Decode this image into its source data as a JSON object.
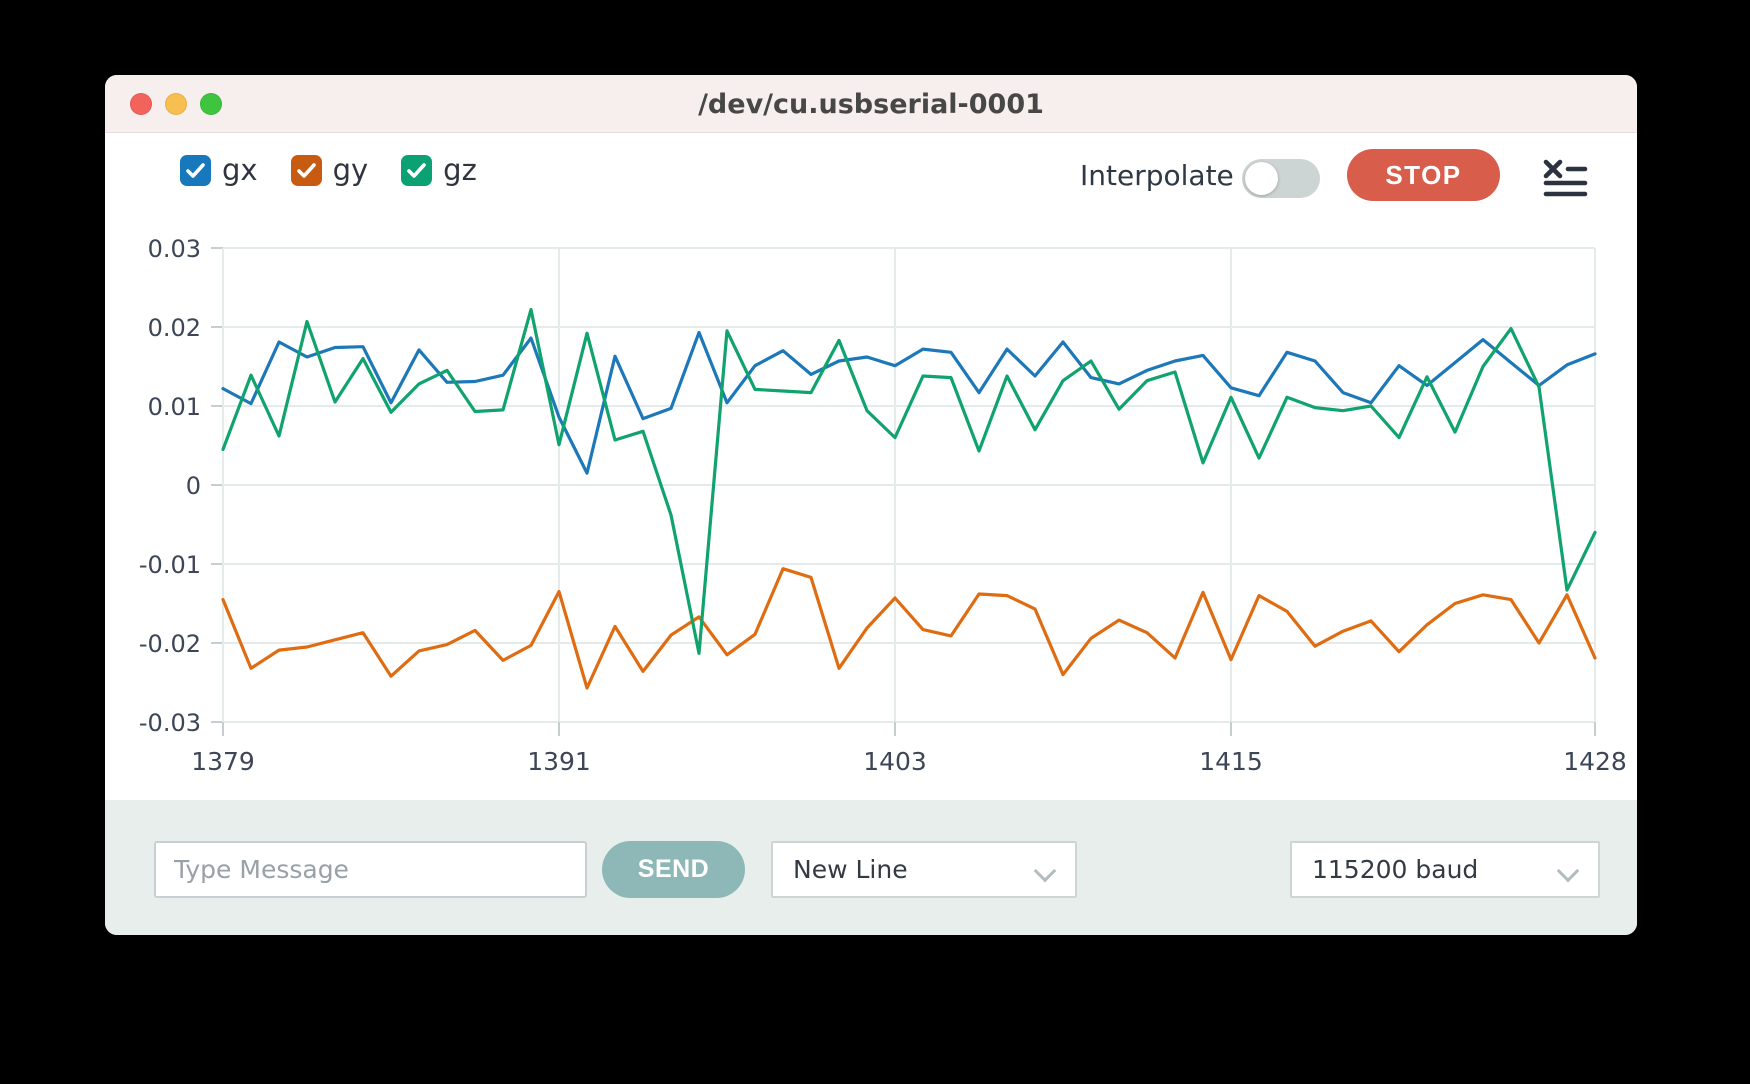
{
  "window": {
    "title": "/dev/cu.usbserial-0001"
  },
  "toolbar": {
    "legend": [
      {
        "label": "gx",
        "color": "#1878bc",
        "checked": true
      },
      {
        "label": "gy",
        "color": "#c75b12",
        "checked": true
      },
      {
        "label": "gz",
        "color": "#0ba173",
        "checked": true
      }
    ],
    "interpolate_label": "Interpolate",
    "interpolate_on": false,
    "stop_label": "STOP"
  },
  "chart_data": {
    "type": "line",
    "title": "",
    "xlabel": "",
    "ylabel": "",
    "grid": true,
    "legend_position": "top-left",
    "ylim": [
      -0.03,
      0.03
    ],
    "yticks": [
      {
        "value": 0.03,
        "label": "0.03"
      },
      {
        "value": 0.02,
        "label": "0.02"
      },
      {
        "value": 0.01,
        "label": "0.01"
      },
      {
        "value": 0,
        "label": "0"
      },
      {
        "value": -0.01,
        "label": "-0.01"
      },
      {
        "value": -0.02,
        "label": "-0.02"
      },
      {
        "value": -0.03,
        "label": "-0.03"
      }
    ],
    "xticks": [
      {
        "index": 0,
        "label": "1379"
      },
      {
        "index": 12,
        "label": "1391"
      },
      {
        "index": 24,
        "label": "1403"
      },
      {
        "index": 36,
        "label": "1415"
      },
      {
        "index": 49,
        "label": "1428"
      }
    ],
    "x": [
      1379,
      1380,
      1381,
      1382,
      1383,
      1384,
      1385,
      1386,
      1387,
      1388,
      1389,
      1390,
      1391,
      1392,
      1393,
      1394,
      1395,
      1396,
      1397,
      1398,
      1399,
      1400,
      1401,
      1402,
      1403,
      1404,
      1405,
      1406,
      1407,
      1408,
      1409,
      1410,
      1411,
      1412,
      1413,
      1414,
      1415,
      1416,
      1417,
      1418,
      1419,
      1420,
      1421,
      1422,
      1423,
      1424,
      1425,
      1426,
      1427,
      1428
    ],
    "series": [
      {
        "name": "gx",
        "color": "#1c78b8",
        "values": [
          0.0122,
          0.0103,
          0.0181,
          0.0162,
          0.0174,
          0.0175,
          0.0104,
          0.0171,
          0.013,
          0.0131,
          0.0139,
          0.0186,
          0.0086,
          0.0015,
          0.0163,
          0.0084,
          0.0097,
          0.0193,
          0.0104,
          0.0151,
          0.017,
          0.014,
          0.0157,
          0.0162,
          0.0151,
          0.0172,
          0.0168,
          0.0117,
          0.0172,
          0.0138,
          0.0181,
          0.0136,
          0.0128,
          0.0145,
          0.0157,
          0.0164,
          0.0123,
          0.0113,
          0.0168,
          0.0157,
          0.0117,
          0.0104,
          0.0151,
          0.0126,
          0.0155,
          0.0184,
          0.0155,
          0.0126,
          0.0152,
          0.0166
        ]
      },
      {
        "name": "gy",
        "color": "#e06c12",
        "values": [
          -0.0145,
          -0.0232,
          -0.0209,
          -0.0205,
          -0.0196,
          -0.0187,
          -0.0242,
          -0.021,
          -0.0202,
          -0.0184,
          -0.0222,
          -0.0203,
          -0.0135,
          -0.0257,
          -0.0179,
          -0.0236,
          -0.019,
          -0.0167,
          -0.0215,
          -0.0189,
          -0.0106,
          -0.0117,
          -0.0232,
          -0.0181,
          -0.0143,
          -0.0183,
          -0.0191,
          -0.0138,
          -0.014,
          -0.0157,
          -0.024,
          -0.0194,
          -0.0171,
          -0.0187,
          -0.0219,
          -0.0136,
          -0.0221,
          -0.014,
          -0.016,
          -0.0204,
          -0.0185,
          -0.0172,
          -0.0211,
          -0.0177,
          -0.015,
          -0.0139,
          -0.0145,
          -0.02,
          -0.0139,
          -0.0219
        ]
      },
      {
        "name": "gz",
        "color": "#10a36e",
        "values": [
          0.0045,
          0.0139,
          0.0062,
          0.0207,
          0.0105,
          0.016,
          0.0092,
          0.0128,
          0.0145,
          0.0093,
          0.0095,
          0.0222,
          0.0051,
          0.0192,
          0.0057,
          0.0068,
          -0.0038,
          -0.0213,
          0.0195,
          0.0121,
          0.0119,
          0.0117,
          0.0183,
          0.0094,
          0.006,
          0.0138,
          0.0136,
          0.0043,
          0.0138,
          0.007,
          0.0132,
          0.0157,
          0.0096,
          0.0132,
          0.0143,
          0.0028,
          0.0111,
          0.0034,
          0.0111,
          0.0098,
          0.0094,
          0.01,
          0.006,
          0.0137,
          0.0067,
          0.015,
          0.0198,
          0.0124,
          -0.0133,
          -0.006
        ]
      }
    ]
  },
  "footer": {
    "message_placeholder": "Type Message",
    "send_label": "SEND",
    "line_ending": "New Line",
    "baud": "115200 baud"
  }
}
